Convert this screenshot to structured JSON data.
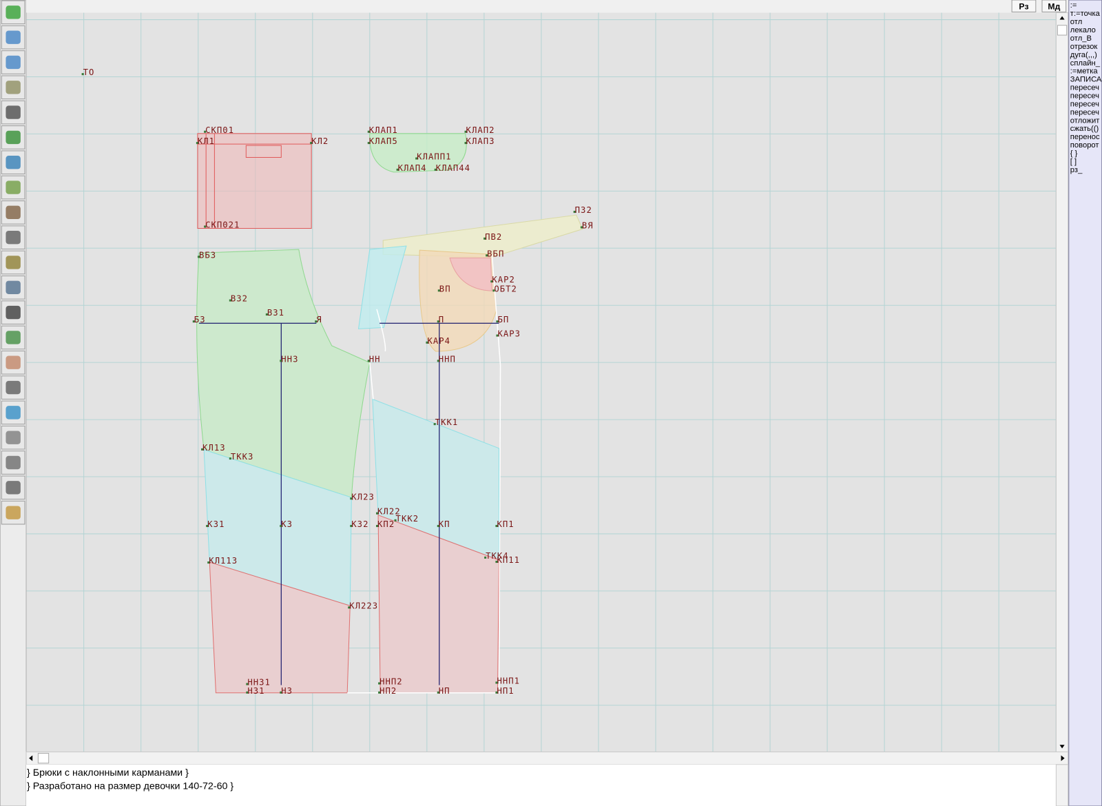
{
  "toolbar_buttons": [
    "Рз",
    "Мд"
  ],
  "command_panel": [
    ":=",
    "т:=точка",
    "отл",
    "лекало",
    "отл_В",
    "отрезок",
    "дуга(,,,)",
    "сплайн_",
    ":=метка",
    "ЗАПИСА",
    "пересеч",
    "пересеч",
    "пересеч",
    "пересеч",
    "отложит",
    "сжать(()",
    "перенос",
    "поворот",
    "{ }",
    "[ ]",
    "рз_"
  ],
  "canvas_labels": [
    "ТО",
    "СКП01",
    "КЛ1",
    "КЛ2",
    "СКП021",
    "КЛАП1",
    "КЛАП2",
    "КЛАП5",
    "КЛАП3",
    "КЛАПП1",
    "КЛАП4",
    "КЛАП44",
    "П32",
    "ВЯ",
    "ПВ2",
    "ВБП",
    "ВБЗ",
    "КАР2",
    "ОБТ2",
    "ВП",
    "ВЗ2",
    "ВЗ1",
    "БЗ",
    "Я",
    "П",
    "БП",
    "КАР3",
    "КАР4",
    "ННЗ",
    "НН",
    "ННП",
    "ТКК1",
    "КЛ13",
    "ТКК3",
    "КЛ23",
    "КЛ22",
    "ТКК2",
    "КЗ1",
    "КЗ",
    "КЗ2",
    "КП2",
    "КП",
    "КП1",
    "ТКК4",
    "КП11",
    "КЛ113",
    "КЛ223",
    "ННЗ1",
    "ННП2",
    "ННП1",
    "НЗ1",
    "НЗ",
    "НП2",
    "НП",
    "НП1"
  ],
  "description_lines": [
    "} Брюки с наклонными карманами  }",
    "} Разработано на размер девочки 140-72-60 }"
  ]
}
